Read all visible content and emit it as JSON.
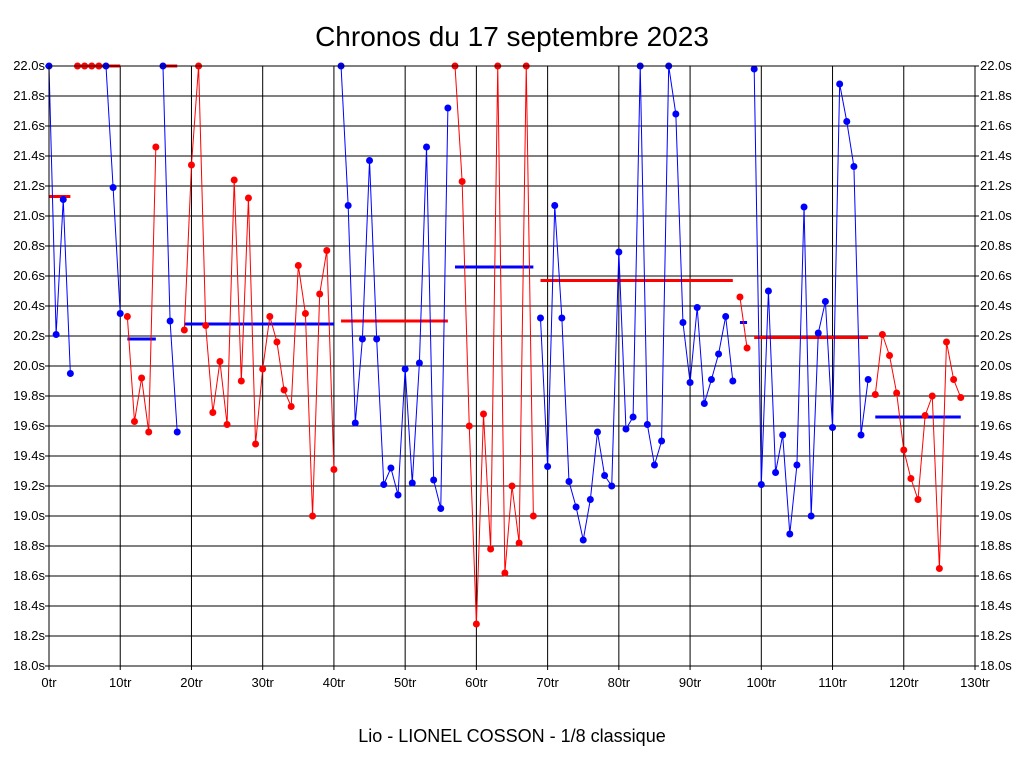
{
  "chart_data": {
    "type": "line",
    "title": "Chronos du 17 septembre 2023",
    "caption": "Lio - LIONEL COSSON - 1/8 classique",
    "x_unit": "tr",
    "y_unit": "s",
    "xlim": [
      0,
      130
    ],
    "ylim": [
      18.0,
      22.0
    ],
    "x_ticks": [
      0,
      10,
      20,
      30,
      40,
      50,
      60,
      70,
      80,
      90,
      100,
      110,
      120,
      130
    ],
    "y_ticks": [
      18.0,
      18.2,
      18.4,
      18.6,
      18.8,
      19.0,
      19.2,
      19.4,
      19.6,
      19.8,
      20.0,
      20.2,
      20.4,
      20.6,
      20.8,
      21.0,
      21.2,
      21.4,
      21.6,
      21.8,
      22.0
    ],
    "grid": true,
    "colors": {
      "blue": "#0000ff",
      "red": "#ff0000",
      "frame": "#000000"
    },
    "series": [
      {
        "color": "#0000ff",
        "points": [
          [
            0,
            22.0
          ],
          [
            1,
            20.21
          ],
          [
            2,
            21.11
          ],
          [
            3,
            19.95
          ]
        ]
      },
      {
        "color": "#ff0000",
        "points": [
          [
            4,
            22.0
          ],
          [
            5,
            22.0
          ],
          [
            6,
            22.0
          ],
          [
            7,
            22.0
          ]
        ]
      },
      {
        "color": "#0000ff",
        "points": [
          [
            8,
            22.0
          ],
          [
            9,
            21.19
          ],
          [
            10,
            20.35
          ]
        ]
      },
      {
        "color": "#ff0000",
        "points": [
          [
            11,
            20.33
          ],
          [
            12,
            19.63
          ],
          [
            13,
            19.92
          ],
          [
            14,
            19.56
          ],
          [
            15,
            21.46
          ]
        ]
      },
      {
        "color": "#0000ff",
        "points": [
          [
            16,
            22.0
          ],
          [
            17,
            20.3
          ],
          [
            18,
            19.56
          ]
        ]
      },
      {
        "color": "#ff0000",
        "points": [
          [
            19,
            20.24
          ],
          [
            20,
            21.34
          ],
          [
            21,
            22.0
          ],
          [
            22,
            20.27
          ],
          [
            23,
            19.69
          ],
          [
            24,
            20.03
          ],
          [
            25,
            19.61
          ],
          [
            26,
            21.24
          ],
          [
            27,
            19.9
          ],
          [
            28,
            21.12
          ],
          [
            29,
            19.48
          ],
          [
            30,
            19.98
          ],
          [
            31,
            20.33
          ],
          [
            32,
            20.16
          ],
          [
            33,
            19.84
          ],
          [
            34,
            19.73
          ],
          [
            35,
            20.67
          ],
          [
            36,
            20.35
          ],
          [
            37,
            19.0
          ],
          [
            38,
            20.48
          ],
          [
            39,
            20.77
          ],
          [
            40,
            19.31
          ]
        ]
      },
      {
        "color": "#0000ff",
        "points": [
          [
            41,
            22.0
          ],
          [
            42,
            21.07
          ],
          [
            43,
            19.62
          ],
          [
            44,
            20.18
          ],
          [
            45,
            21.37
          ],
          [
            46,
            20.18
          ],
          [
            47,
            19.21
          ],
          [
            48,
            19.32
          ],
          [
            49,
            19.14
          ],
          [
            50,
            19.98
          ],
          [
            51,
            19.22
          ],
          [
            52,
            20.02
          ],
          [
            53,
            21.46
          ],
          [
            54,
            19.24
          ],
          [
            55,
            19.05
          ],
          [
            56,
            21.72
          ]
        ]
      },
      {
        "color": "#ff0000",
        "points": [
          [
            57,
            22.0
          ],
          [
            58,
            21.23
          ],
          [
            59,
            19.6
          ],
          [
            60,
            18.28
          ],
          [
            61,
            19.68
          ],
          [
            62,
            18.78
          ],
          [
            63,
            22.0
          ],
          [
            64,
            18.62
          ],
          [
            65,
            19.2
          ],
          [
            66,
            18.82
          ],
          [
            67,
            22.0
          ],
          [
            68,
            19.0
          ]
        ]
      },
      {
        "color": "#0000ff",
        "points": [
          [
            69,
            20.32
          ],
          [
            70,
            19.33
          ],
          [
            71,
            21.07
          ],
          [
            72,
            20.32
          ],
          [
            73,
            19.23
          ],
          [
            74,
            19.06
          ],
          [
            75,
            18.84
          ],
          [
            76,
            19.11
          ],
          [
            77,
            19.56
          ],
          [
            78,
            19.27
          ],
          [
            79,
            19.2
          ],
          [
            80,
            20.76
          ],
          [
            81,
            19.58
          ],
          [
            82,
            19.66
          ],
          [
            83,
            22.0
          ],
          [
            84,
            19.61
          ],
          [
            85,
            19.34
          ],
          [
            86,
            19.5
          ],
          [
            87,
            22.0
          ],
          [
            88,
            21.68
          ],
          [
            89,
            20.29
          ],
          [
            90,
            19.89
          ],
          [
            91,
            20.39
          ],
          [
            92,
            19.75
          ],
          [
            93,
            19.91
          ],
          [
            94,
            20.08
          ],
          [
            95,
            20.33
          ],
          [
            96,
            19.9
          ]
        ]
      },
      {
        "color": "#ff0000",
        "points": [
          [
            97,
            20.46
          ],
          [
            98,
            20.12
          ]
        ]
      },
      {
        "color": "#0000ff",
        "points": [
          [
            99,
            21.98
          ],
          [
            100,
            19.21
          ],
          [
            101,
            20.5
          ],
          [
            102,
            19.29
          ],
          [
            103,
            19.54
          ],
          [
            104,
            18.88
          ],
          [
            105,
            19.34
          ],
          [
            106,
            21.06
          ],
          [
            107,
            19.0
          ],
          [
            108,
            20.22
          ],
          [
            109,
            20.43
          ],
          [
            110,
            19.59
          ],
          [
            111,
            21.88
          ],
          [
            112,
            21.63
          ],
          [
            113,
            21.33
          ],
          [
            114,
            19.54
          ],
          [
            115,
            19.91
          ]
        ]
      },
      {
        "color": "#ff0000",
        "points": [
          [
            116,
            19.81
          ],
          [
            117,
            20.21
          ],
          [
            118,
            20.07
          ],
          [
            119,
            19.82
          ],
          [
            120,
            19.44
          ],
          [
            121,
            19.25
          ],
          [
            122,
            19.11
          ],
          [
            123,
            19.67
          ],
          [
            124,
            19.8
          ],
          [
            125,
            18.65
          ],
          [
            126,
            20.16
          ],
          [
            127,
            19.91
          ],
          [
            128,
            19.79
          ]
        ]
      }
    ],
    "averages": [
      {
        "color": "#ff0000",
        "x": [
          0,
          3
        ],
        "y": 21.13
      },
      {
        "color": "#ff0000",
        "x": [
          4,
          10
        ],
        "y": 22.0
      },
      {
        "color": "#0000ff",
        "x": [
          11,
          15
        ],
        "y": 20.18
      },
      {
        "color": "#ff0000",
        "x": [
          16,
          18
        ],
        "y": 22.0
      },
      {
        "color": "#0000ff",
        "x": [
          19,
          40
        ],
        "y": 20.28
      },
      {
        "color": "#ff0000",
        "x": [
          41,
          56
        ],
        "y": 20.3
      },
      {
        "color": "#0000ff",
        "x": [
          57,
          68
        ],
        "y": 20.66
      },
      {
        "color": "#ff0000",
        "x": [
          69,
          96
        ],
        "y": 20.57
      },
      {
        "color": "#0000ff",
        "x": [
          97,
          98
        ],
        "y": 20.29
      },
      {
        "color": "#ff0000",
        "x": [
          99,
          115
        ],
        "y": 20.19
      },
      {
        "color": "#0000ff",
        "x": [
          116,
          128
        ],
        "y": 19.66
      }
    ]
  }
}
